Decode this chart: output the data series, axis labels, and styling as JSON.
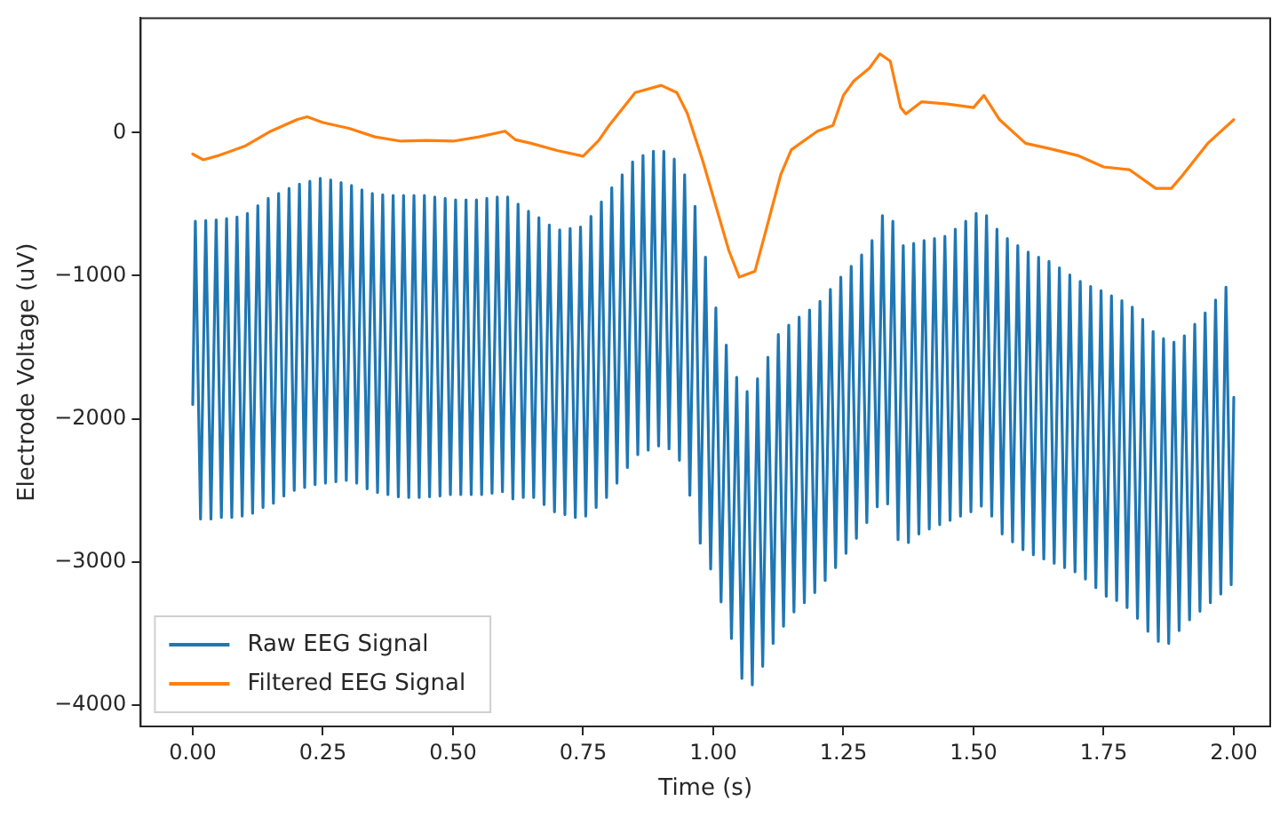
{
  "chart_data": {
    "type": "line",
    "xlabel": "Time (s)",
    "ylabel": "Electrode Voltage (uV)",
    "xlim": [
      -0.1,
      2.07
    ],
    "ylim": [
      -4150,
      800
    ],
    "xticks": [
      {
        "value": 0,
        "label": "0.00"
      },
      {
        "value": 0.25,
        "label": "0.25"
      },
      {
        "value": 0.5,
        "label": "0.50"
      },
      {
        "value": 0.75,
        "label": "0.75"
      },
      {
        "value": 1,
        "label": "1.00"
      },
      {
        "value": 1.25,
        "label": "1.25"
      },
      {
        "value": 1.5,
        "label": "1.50"
      },
      {
        "value": 1.75,
        "label": "1.75"
      },
      {
        "value": 2,
        "label": "2.00"
      }
    ],
    "yticks": [
      {
        "value": -4000,
        "label": "−4000"
      },
      {
        "value": -3000,
        "label": "−3000"
      },
      {
        "value": -2000,
        "label": "−2000"
      },
      {
        "value": -1000,
        "label": "−1000"
      },
      0
    ],
    "grid": false,
    "legend": "bottom left",
    "marker": "none",
    "line_style": "solid",
    "series": [
      {
        "name": "Raw EEG Signal",
        "color": "#1f77b4",
        "x": [
          0,
          0.005,
          0.015,
          0.025,
          0.035,
          0.045,
          0.055,
          0.065,
          0.075,
          0.085,
          0.095,
          0.105,
          0.115,
          0.125,
          0.135,
          0.145,
          0.155,
          0.165,
          0.175,
          0.185,
          0.195,
          0.205,
          0.215,
          0.225,
          0.235,
          0.245,
          0.255,
          0.265,
          0.275,
          0.285,
          0.295,
          0.305,
          0.315,
          0.325,
          0.335,
          0.345,
          0.355,
          0.365,
          0.375,
          0.385,
          0.395,
          0.405,
          0.415,
          0.425,
          0.435,
          0.445,
          0.455,
          0.465,
          0.475,
          0.485,
          0.495,
          0.505,
          0.515,
          0.525,
          0.535,
          0.545,
          0.555,
          0.565,
          0.575,
          0.585,
          0.595,
          0.605,
          0.615,
          0.625,
          0.635,
          0.645,
          0.655,
          0.665,
          0.675,
          0.685,
          0.695,
          0.705,
          0.715,
          0.725,
          0.735,
          0.745,
          0.755,
          0.765,
          0.775,
          0.785,
          0.795,
          0.805,
          0.815,
          0.825,
          0.835,
          0.845,
          0.855,
          0.865,
          0.875,
          0.885,
          0.895,
          0.905,
          0.915,
          0.925,
          0.935,
          0.945,
          0.955,
          0.965,
          0.975,
          0.985,
          0.995,
          1.005,
          1.015,
          1.025,
          1.035,
          1.045,
          1.055,
          1.065,
          1.075,
          1.085,
          1.095,
          1.105,
          1.115,
          1.125,
          1.135,
          1.145,
          1.155,
          1.165,
          1.175,
          1.185,
          1.195,
          1.205,
          1.215,
          1.225,
          1.235,
          1.245,
          1.255,
          1.265,
          1.275,
          1.285,
          1.295,
          1.305,
          1.315,
          1.325,
          1.335,
          1.345,
          1.355,
          1.365,
          1.375,
          1.385,
          1.395,
          1.405,
          1.415,
          1.425,
          1.435,
          1.445,
          1.455,
          1.465,
          1.475,
          1.485,
          1.495,
          1.505,
          1.515,
          1.525,
          1.535,
          1.545,
          1.555,
          1.565,
          1.575,
          1.585,
          1.595,
          1.605,
          1.615,
          1.625,
          1.635,
          1.645,
          1.655,
          1.665,
          1.675,
          1.685,
          1.695,
          1.705,
          1.715,
          1.725,
          1.735,
          1.745,
          1.755,
          1.765,
          1.775,
          1.785,
          1.795,
          1.805,
          1.815,
          1.825,
          1.835,
          1.845,
          1.855,
          1.865,
          1.875,
          1.885,
          1.895,
          1.905,
          1.915,
          1.925,
          1.935,
          1.945,
          1.955,
          1.965,
          1.975,
          1.985,
          1.995,
          2.0
        ],
        "values": [
          -1900,
          -620,
          -2700,
          -615,
          -2700,
          -610,
          -2690,
          -600,
          -2690,
          -590,
          -2680,
          -565,
          -2660,
          -510,
          -2620,
          -460,
          -2590,
          -425,
          -2540,
          -390,
          -2500,
          -360,
          -2480,
          -340,
          -2460,
          -320,
          -2450,
          -330,
          -2440,
          -350,
          -2430,
          -370,
          -2450,
          -400,
          -2490,
          -425,
          -2515,
          -435,
          -2530,
          -440,
          -2545,
          -440,
          -2550,
          -440,
          -2550,
          -440,
          -2545,
          -450,
          -2540,
          -460,
          -2530,
          -470,
          -2530,
          -470,
          -2530,
          -470,
          -2530,
          -460,
          -2520,
          -450,
          -2510,
          -450,
          -2560,
          -500,
          -2550,
          -550,
          -2550,
          -595,
          -2600,
          -645,
          -2650,
          -680,
          -2670,
          -670,
          -2690,
          -660,
          -2680,
          -585,
          -2620,
          -485,
          -2550,
          -385,
          -2450,
          -295,
          -2340,
          -205,
          -2250,
          -160,
          -2220,
          -130,
          -2190,
          -130,
          -2210,
          -185,
          -2290,
          -295,
          -2535,
          -515,
          -2870,
          -870,
          -3050,
          -1225,
          -3280,
          -1485,
          -3535,
          -1710,
          -3815,
          -1810,
          -3860,
          -1720,
          -3730,
          -1570,
          -3570,
          -1410,
          -3450,
          -1345,
          -3350,
          -1290,
          -3285,
          -1240,
          -3215,
          -1180,
          -3130,
          -1095,
          -3040,
          -1010,
          -2940,
          -935,
          -2835,
          -855,
          -2725,
          -755,
          -2615,
          -580,
          -2595,
          -620,
          -2845,
          -790,
          -2865,
          -775,
          -2805,
          -755,
          -2770,
          -740,
          -2740,
          -725,
          -2710,
          -675,
          -2680,
          -620,
          -2650,
          -565,
          -2610,
          -580,
          -2680,
          -675,
          -2805,
          -740,
          -2860,
          -790,
          -2915,
          -835,
          -2950,
          -870,
          -2980,
          -900,
          -3010,
          -945,
          -3040,
          -995,
          -3070,
          -1040,
          -3120,
          -1075,
          -3180,
          -1105,
          -3240,
          -1140,
          -3270,
          -1175,
          -3320,
          -1220,
          -3395,
          -1305,
          -3485,
          -1390,
          -3555,
          -1440,
          -3570,
          -1465,
          -3480,
          -1420,
          -3405,
          -1340,
          -3345,
          -1260,
          -3285,
          -1170,
          -3225,
          -1080,
          -3160,
          -1850
        ]
      },
      {
        "name": "Filtered EEG Signal",
        "color": "#ff7f0e",
        "x": [
          0,
          0.02,
          0.05,
          0.1,
          0.15,
          0.2,
          0.22,
          0.25,
          0.3,
          0.35,
          0.4,
          0.45,
          0.5,
          0.55,
          0.6,
          0.62,
          0.65,
          0.7,
          0.75,
          0.78,
          0.8,
          0.85,
          0.9,
          0.93,
          0.95,
          0.98,
          1.0,
          1.03,
          1.05,
          1.08,
          1.1,
          1.13,
          1.15,
          1.2,
          1.23,
          1.25,
          1.27,
          1.3,
          1.32,
          1.34,
          1.36,
          1.37,
          1.4,
          1.45,
          1.5,
          1.52,
          1.55,
          1.6,
          1.65,
          1.7,
          1.75,
          1.8,
          1.85,
          1.88,
          1.9,
          1.95,
          2.0
        ],
        "values": [
          -150,
          -190,
          -160,
          -95,
          10,
          90,
          110,
          70,
          30,
          -30,
          -60,
          -55,
          -60,
          -30,
          10,
          -50,
          -75,
          -125,
          -165,
          -55,
          50,
          280,
          330,
          280,
          135,
          -200,
          -450,
          -825,
          -1010,
          -970,
          -700,
          -290,
          -120,
          10,
          50,
          260,
          360,
          450,
          550,
          500,
          175,
          130,
          215,
          200,
          175,
          260,
          90,
          -75,
          -115,
          -160,
          -240,
          -260,
          -390,
          -390,
          -305,
          -75,
          90
        ]
      }
    ]
  }
}
